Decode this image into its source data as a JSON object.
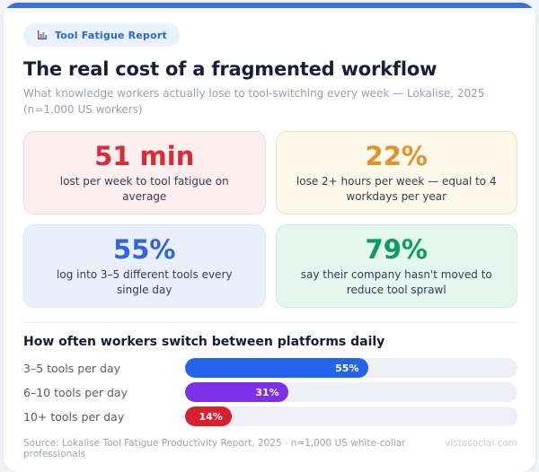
{
  "page": {
    "background": "#f1f3f8",
    "accent_bar_color": "#3d6fdd"
  },
  "badge": {
    "label": "Tool Fatigue Report",
    "icon": "bar-chart-icon",
    "text_color": "#2766e0",
    "bg_color": "#e9f1fd"
  },
  "header": {
    "title": "The real cost of a fragmented workflow",
    "subtitle": "What knowledge workers actually lose to tool-switching every week — Lokalise, 2025 (n=1,000 US workers)"
  },
  "stats": {
    "cards": [
      {
        "value": "51 min",
        "caption": "lost per week to tool fatigue on average",
        "value_color": "#d92c35",
        "bg": "#fdeef0",
        "border": "#f6d9dc"
      },
      {
        "value": "22%",
        "caption": "lose 2+ hours per week — equal to 4 workdays per year",
        "value_color": "#e1922f",
        "bg": "#fdf9e8",
        "border": "#f0e3bb"
      },
      {
        "value": "55%",
        "caption": "log into 3–5 different tools every single day",
        "value_color": "#2d64e8",
        "bg": "#e9effb",
        "border": "#dfe8f9"
      },
      {
        "value": "79%",
        "caption": "say their company hasn't moved to reduce tool sprawl",
        "value_color": "#0d9b63",
        "bg": "#e4f7ef",
        "border": "#cdeedd"
      }
    ]
  },
  "chart_data": {
    "type": "bar",
    "orientation": "horizontal",
    "title": "How often workers switch between platforms daily",
    "categories": [
      "3–5 tools per day",
      "6–10 tools per day",
      "10+ tools per day"
    ],
    "values": [
      55,
      31,
      14
    ],
    "value_labels": [
      "55%",
      "31%",
      "14%"
    ],
    "bar_colors": [
      "#2563eb",
      "#7c30e8",
      "#d91f2e"
    ],
    "track_color": "#eef0f5",
    "xlim": [
      0,
      100
    ],
    "grid": false,
    "legend": false
  },
  "footer": {
    "source": "Source: Lokalise Tool Fatigue Productivity Report, 2025 · n=1,000 US white-collar professionals",
    "site": "vistasocial.com"
  }
}
